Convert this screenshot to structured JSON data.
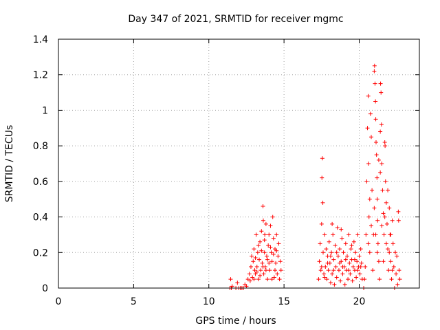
{
  "chart_data": {
    "type": "scatter",
    "title": "Day 347 of 2021, SRMTID for receiver mgmc",
    "xlabel": "GPS time / hours",
    "ylabel": "SRMTID / TECUs",
    "xlim": [
      0,
      24
    ],
    "ylim": [
      0,
      1.4
    ],
    "xticks": [
      0,
      5,
      10,
      15,
      20
    ],
    "xtick_labels": [
      "0",
      "5",
      "10",
      "15",
      "20"
    ],
    "yticks": [
      0,
      0.2,
      0.4,
      0.6,
      0.8,
      1.0,
      1.2,
      1.4
    ],
    "ytick_labels": [
      "0",
      "0.2",
      "0.4",
      "0.6",
      "0.8",
      "1",
      "1.2",
      "1.4"
    ],
    "grid": true,
    "marker": "+",
    "color": "#ff0000",
    "series": [
      {
        "name": "SRMTID",
        "points": [
          [
            11.4,
            0.0
          ],
          [
            11.45,
            0.05
          ],
          [
            11.5,
            0.0
          ],
          [
            11.55,
            0.01
          ],
          [
            11.8,
            0.0
          ],
          [
            11.9,
            0.03
          ],
          [
            12.0,
            0.0
          ],
          [
            12.1,
            0.0
          ],
          [
            12.2,
            0.0
          ],
          [
            12.3,
            0.0
          ],
          [
            12.4,
            0.02
          ],
          [
            12.5,
            0.01
          ],
          [
            12.6,
            0.05
          ],
          [
            12.7,
            0.08
          ],
          [
            12.75,
            0.04
          ],
          [
            12.8,
            0.12
          ],
          [
            12.85,
            0.18
          ],
          [
            12.9,
            0.06
          ],
          [
            12.95,
            0.15
          ],
          [
            13.0,
            0.22
          ],
          [
            13.05,
            0.1
          ],
          [
            13.1,
            0.08
          ],
          [
            13.15,
            0.3
          ],
          [
            13.2,
            0.12
          ],
          [
            13.25,
            0.2
          ],
          [
            13.3,
            0.05
          ],
          [
            13.35,
            0.16
          ],
          [
            13.4,
            0.26
          ],
          [
            13.45,
            0.1
          ],
          [
            13.5,
            0.32
          ],
          [
            13.55,
            0.14
          ],
          [
            13.6,
            0.46
          ],
          [
            13.62,
            0.38
          ],
          [
            13.65,
            0.08
          ],
          [
            13.7,
            0.2
          ],
          [
            13.72,
            0.3
          ],
          [
            13.75,
            0.12
          ],
          [
            13.8,
            0.36
          ],
          [
            13.85,
            0.18
          ],
          [
            13.9,
            0.05
          ],
          [
            13.95,
            0.24
          ],
          [
            14.0,
            0.3
          ],
          [
            14.05,
            0.1
          ],
          [
            14.1,
            0.35
          ],
          [
            14.15,
            0.2
          ],
          [
            14.2,
            0.15
          ],
          [
            14.25,
            0.4
          ],
          [
            14.3,
            0.28
          ],
          [
            14.35,
            0.06
          ],
          [
            14.4,
            0.22
          ],
          [
            14.45,
            0.14
          ],
          [
            14.5,
            0.3
          ],
          [
            14.55,
            0.08
          ],
          [
            14.6,
            0.18
          ],
          [
            14.65,
            0.25
          ],
          [
            14.7,
            0.05
          ],
          [
            14.75,
            0.15
          ],
          [
            14.8,
            0.1
          ],
          [
            13.0,
            0.05
          ],
          [
            13.2,
            0.09
          ],
          [
            13.4,
            0.07
          ],
          [
            13.6,
            0.12
          ],
          [
            13.8,
            0.1
          ],
          [
            14.0,
            0.14
          ],
          [
            14.2,
            0.05
          ],
          [
            14.4,
            0.1
          ],
          [
            13.1,
            0.17
          ],
          [
            13.3,
            0.24
          ],
          [
            13.5,
            0.21
          ],
          [
            13.7,
            0.27
          ],
          [
            13.9,
            0.16
          ],
          [
            14.1,
            0.23
          ],
          [
            14.3,
            0.19
          ],
          [
            14.5,
            0.21
          ],
          [
            17.3,
            0.05
          ],
          [
            17.35,
            0.15
          ],
          [
            17.4,
            0.25
          ],
          [
            17.45,
            0.1
          ],
          [
            17.5,
            0.36
          ],
          [
            17.52,
            0.62
          ],
          [
            17.55,
            0.73
          ],
          [
            17.58,
            0.48
          ],
          [
            17.6,
            0.2
          ],
          [
            17.65,
            0.08
          ],
          [
            17.7,
            0.3
          ],
          [
            17.75,
            0.12
          ],
          [
            17.8,
            0.22
          ],
          [
            17.85,
            0.05
          ],
          [
            17.9,
            0.18
          ],
          [
            17.95,
            0.1
          ],
          [
            18.0,
            0.26
          ],
          [
            18.05,
            0.14
          ],
          [
            18.1,
            0.03
          ],
          [
            18.15,
            0.2
          ],
          [
            18.2,
            0.08
          ],
          [
            18.25,
            0.3
          ],
          [
            18.3,
            0.16
          ],
          [
            18.35,
            0.02
          ],
          [
            18.4,
            0.24
          ],
          [
            18.45,
            0.12
          ],
          [
            18.5,
            0.06
          ],
          [
            18.55,
            0.34
          ],
          [
            18.6,
            0.18
          ],
          [
            18.65,
            0.1
          ],
          [
            18.7,
            0.22
          ],
          [
            18.75,
            0.04
          ],
          [
            18.8,
            0.15
          ],
          [
            18.85,
            0.28
          ],
          [
            18.9,
            0.08
          ],
          [
            18.95,
            0.2
          ],
          [
            19.0,
            0.12
          ],
          [
            19.05,
            0.02
          ],
          [
            19.1,
            0.25
          ],
          [
            19.15,
            0.1
          ],
          [
            19.2,
            0.18
          ],
          [
            19.25,
            0.05
          ],
          [
            19.3,
            0.3
          ],
          [
            19.35,
            0.14
          ],
          [
            19.4,
            0.08
          ],
          [
            19.45,
            0.22
          ],
          [
            19.5,
            0.16
          ],
          [
            19.55,
            0.04
          ],
          [
            19.6,
            0.12
          ],
          [
            19.65,
            0.26
          ],
          [
            19.7,
            0.1
          ],
          [
            19.75,
            0.2
          ],
          [
            19.8,
            0.06
          ],
          [
            19.85,
            0.15
          ],
          [
            19.9,
            0.3
          ],
          [
            19.95,
            0.12
          ],
          [
            20.0,
            0.18
          ],
          [
            20.05,
            0.08
          ],
          [
            20.1,
            0.22
          ],
          [
            20.15,
            0.14
          ],
          [
            20.2,
            0.05
          ],
          [
            17.5,
            0.12
          ],
          [
            17.7,
            0.06
          ],
          [
            17.9,
            0.14
          ],
          [
            18.1,
            0.18
          ],
          [
            18.3,
            0.1
          ],
          [
            18.5,
            0.2
          ],
          [
            18.7,
            0.14
          ],
          [
            18.9,
            0.12
          ],
          [
            19.1,
            0.16
          ],
          [
            19.3,
            0.1
          ],
          [
            19.5,
            0.24
          ],
          [
            19.7,
            0.16
          ],
          [
            19.9,
            0.1
          ],
          [
            20.1,
            0.12
          ],
          [
            18.2,
            0.36
          ],
          [
            18.8,
            0.33
          ],
          [
            20.3,
            0.0
          ],
          [
            20.35,
            0.05
          ],
          [
            20.4,
            0.12
          ],
          [
            20.45,
            0.3
          ],
          [
            20.5,
            0.6
          ],
          [
            20.55,
            0.9
          ],
          [
            20.6,
            1.08
          ],
          [
            20.62,
            0.7
          ],
          [
            20.65,
            0.4
          ],
          [
            20.7,
            0.2
          ],
          [
            20.75,
            0.98
          ],
          [
            20.8,
            0.85
          ],
          [
            20.85,
            0.55
          ],
          [
            20.9,
            0.1
          ],
          [
            20.95,
            0.3
          ],
          [
            21.0,
            1.22
          ],
          [
            21.02,
            1.25
          ],
          [
            21.05,
            1.15
          ],
          [
            21.08,
            1.05
          ],
          [
            21.1,
            0.95
          ],
          [
            21.12,
            0.82
          ],
          [
            21.15,
            0.75
          ],
          [
            21.18,
            0.62
          ],
          [
            21.2,
            0.5
          ],
          [
            21.22,
            0.38
          ],
          [
            21.25,
            0.25
          ],
          [
            21.3,
            0.15
          ],
          [
            21.35,
            0.05
          ],
          [
            21.4,
            0.88
          ],
          [
            21.42,
            1.15
          ],
          [
            21.45,
            1.1
          ],
          [
            21.48,
            0.92
          ],
          [
            21.5,
            0.7
          ],
          [
            21.55,
            0.55
          ],
          [
            21.6,
            0.42
          ],
          [
            21.65,
            0.3
          ],
          [
            21.7,
            0.82
          ],
          [
            21.72,
            0.8
          ],
          [
            21.75,
            0.6
          ],
          [
            21.8,
            0.48
          ],
          [
            21.85,
            0.36
          ],
          [
            21.9,
            0.22
          ],
          [
            21.95,
            0.1
          ],
          [
            22.0,
            0.45
          ],
          [
            22.05,
            0.3
          ],
          [
            22.1,
            0.15
          ],
          [
            22.15,
            0.05
          ],
          [
            22.2,
            0.38
          ],
          [
            22.25,
            0.25
          ],
          [
            22.3,
            0.12
          ],
          [
            22.35,
            0.0
          ],
          [
            22.4,
            0.2
          ],
          [
            22.45,
            0.08
          ],
          [
            22.5,
            0.18
          ],
          [
            22.55,
            0.02
          ],
          [
            22.6,
            0.43
          ],
          [
            22.62,
            0.38
          ],
          [
            22.65,
            0.1
          ],
          [
            22.7,
            0.05
          ],
          [
            20.6,
            0.25
          ],
          [
            20.8,
            0.35
          ],
          [
            21.0,
            0.45
          ],
          [
            21.2,
            0.2
          ],
          [
            21.4,
            0.65
          ],
          [
            21.6,
            0.15
          ],
          [
            21.8,
            0.25
          ],
          [
            22.0,
            0.2
          ],
          [
            22.2,
            0.1
          ],
          [
            20.7,
            0.5
          ],
          [
            21.1,
            0.3
          ],
          [
            21.3,
            0.72
          ],
          [
            21.5,
            0.35
          ],
          [
            21.7,
            0.4
          ],
          [
            21.9,
            0.55
          ],
          [
            22.1,
            0.3
          ]
        ]
      }
    ]
  }
}
